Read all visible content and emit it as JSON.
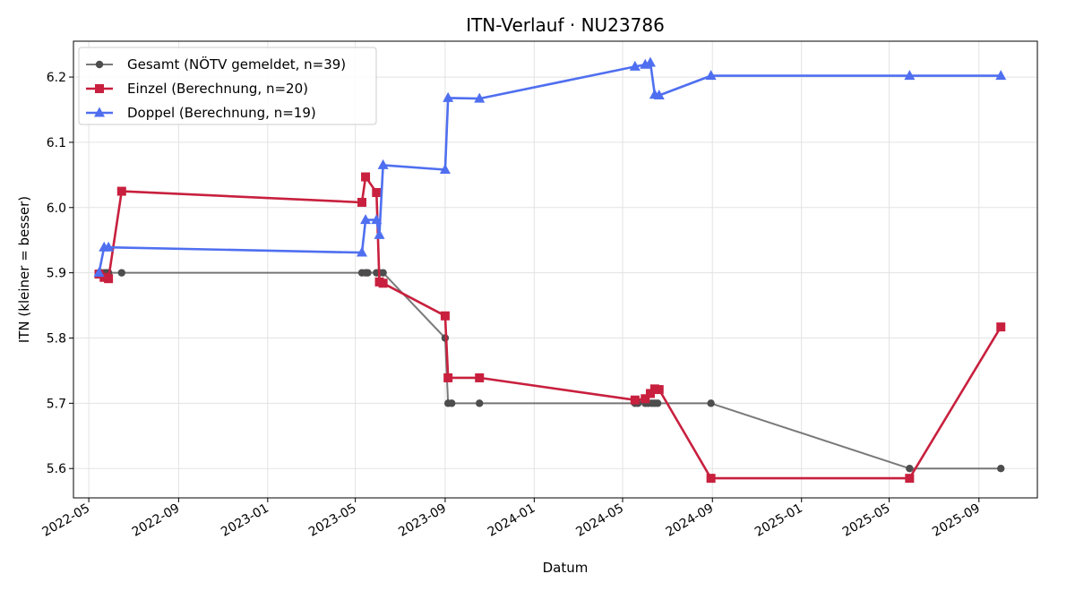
{
  "chart_data": {
    "type": "line",
    "title": "ITN-Verlauf · NU23786",
    "xlabel": "Datum",
    "ylabel": "ITN  (kleiner = besser)",
    "x_type": "date",
    "xlim": [
      "2022-04-10",
      "2025-11-20"
    ],
    "ylim": [
      5.555,
      6.255
    ],
    "xticks": [
      "2022-05",
      "2022-09",
      "2023-01",
      "2023-05",
      "2023-09",
      "2024-01",
      "2024-05",
      "2024-09",
      "2025-01",
      "2025-05",
      "2025-09"
    ],
    "yticks": [
      5.6,
      5.7,
      5.8,
      5.9,
      6.0,
      6.1,
      6.2
    ],
    "grid": true,
    "legend_position": "top-left",
    "series": [
      {
        "name": "Gesamt (NÖTV gemeldet, n=39)",
        "color": "#4d4d4d",
        "marker": "circle",
        "x": [
          "2022-05-15",
          "2022-05-18",
          "2022-05-22",
          "2022-05-25",
          "2022-05-28",
          "2022-06-15",
          "2023-05-10",
          "2023-05-15",
          "2023-05-18",
          "2023-05-30",
          "2023-06-03",
          "2023-06-08",
          "2023-09-01",
          "2023-09-05",
          "2023-09-10",
          "2023-10-18",
          "2024-05-18",
          "2024-05-22",
          "2024-06-01",
          "2024-06-05",
          "2024-06-10",
          "2024-06-14",
          "2024-06-18",
          "2024-08-30",
          "2025-05-29",
          "2025-10-01"
        ],
        "y": [
          5.9,
          5.9,
          5.9,
          5.9,
          5.9,
          5.9,
          5.9,
          5.9,
          5.9,
          5.9,
          5.9,
          5.9,
          5.8,
          5.7,
          5.7,
          5.7,
          5.7,
          5.7,
          5.7,
          5.7,
          5.7,
          5.7,
          5.7,
          5.7,
          5.6,
          5.6
        ]
      },
      {
        "name": "Einzel (Berechnung, n=20)",
        "color": "#c8203e",
        "marker": "square",
        "x": [
          "2022-05-15",
          "2022-05-22",
          "2022-05-28",
          "2022-06-15",
          "2023-05-10",
          "2023-05-15",
          "2023-05-30",
          "2023-06-03",
          "2023-06-08",
          "2023-09-01",
          "2023-09-05",
          "2023-10-18",
          "2024-05-18",
          "2024-06-01",
          "2024-06-08",
          "2024-06-14",
          "2024-06-20",
          "2024-08-30",
          "2025-05-29",
          "2025-10-01"
        ],
        "y": [
          5.898,
          5.893,
          5.891,
          6.025,
          6.008,
          6.047,
          6.023,
          5.886,
          5.884,
          5.834,
          5.739,
          5.739,
          5.705,
          5.707,
          5.715,
          5.722,
          5.721,
          5.585,
          5.585,
          5.817
        ]
      },
      {
        "name": "Doppel (Berechnung, n=19)",
        "color": "#4f6ff0",
        "marker": "triangle",
        "x": [
          "2022-05-15",
          "2022-05-22",
          "2022-05-28",
          "2023-05-10",
          "2023-05-15",
          "2023-05-30",
          "2023-06-03",
          "2023-06-08",
          "2023-09-01",
          "2023-09-05",
          "2023-10-18",
          "2024-05-18",
          "2024-06-01",
          "2024-06-08",
          "2024-06-14",
          "2024-06-20",
          "2024-08-30",
          "2025-05-29",
          "2025-10-01"
        ],
        "y": [
          5.9,
          5.939,
          5.939,
          5.931,
          5.981,
          5.981,
          5.958,
          6.065,
          6.058,
          6.168,
          6.167,
          6.216,
          6.219,
          6.222,
          6.173,
          6.172,
          6.202,
          6.202,
          6.202
        ]
      }
    ]
  }
}
